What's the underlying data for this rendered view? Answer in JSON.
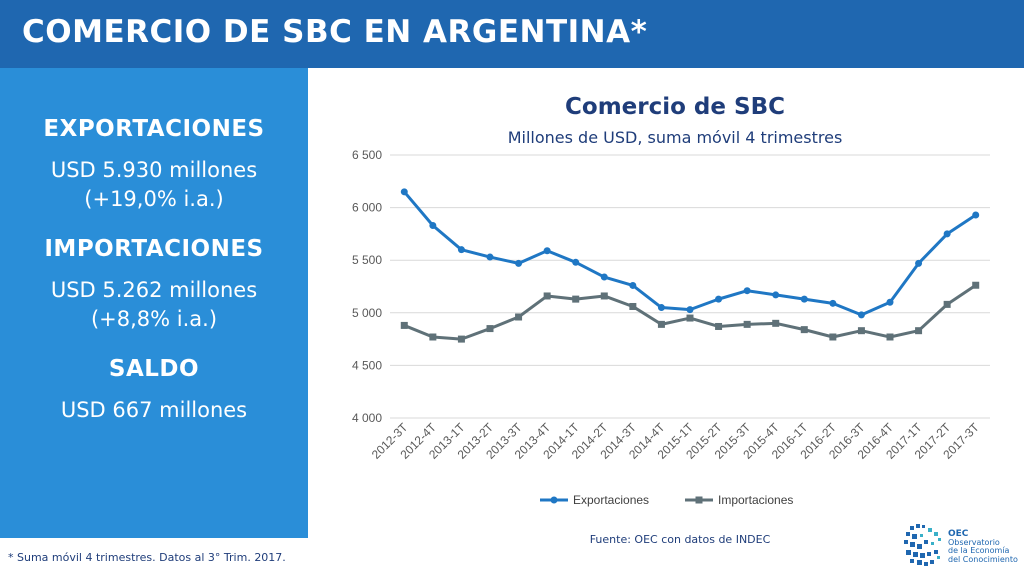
{
  "header": {
    "title": "COMERCIO DE SBC EN ARGENTINA*"
  },
  "left_panel": {
    "exports_heading": "EXPORTACIONES",
    "exports_line1": "USD 5.930 millones",
    "exports_line2": "(+19,0% i.a.)",
    "imports_heading": "IMPORTACIONES",
    "imports_line1": "USD 5.262 millones",
    "imports_line2": "(+8,8% i.a.)",
    "balance_heading": "SALDO",
    "balance_line1": "USD 667 millones",
    "footnote": "* Suma móvil 4 trimestres. Datos al 3° Trim. 2017."
  },
  "source": "Fuente: OEC con datos de INDEC",
  "logo": {
    "name": "OEC",
    "line1": "Observatorio",
    "line2": "de la Economía",
    "line3": "del Conocimiento"
  },
  "chart_data": {
    "type": "line",
    "title": "Comercio de SBC",
    "subtitle": "Millones de USD, suma móvil 4 trimestres",
    "categories": [
      "2012-3T",
      "2012-4T",
      "2013-1T",
      "2013-2T",
      "2013-3T",
      "2013-4T",
      "2014-1T",
      "2014-2T",
      "2014-3T",
      "2014-4T",
      "2015-1T",
      "2015-2T",
      "2015-3T",
      "2015-4T",
      "2016-1T",
      "2016-2T",
      "2016-3T",
      "2016-4T",
      "2017-1T",
      "2017-2T",
      "2017-3T"
    ],
    "series": [
      {
        "name": "Exportaciones",
        "color": "#1f77c4",
        "marker": "circle",
        "values": [
          6150,
          5830,
          5600,
          5530,
          5470,
          5590,
          5480,
          5340,
          5260,
          5050,
          5030,
          5130,
          5210,
          5170,
          5130,
          5090,
          4980,
          5100,
          5470,
          5750,
          5930
        ]
      },
      {
        "name": "Importaciones",
        "color": "#5f7178",
        "marker": "square",
        "values": [
          4880,
          4770,
          4750,
          4850,
          4960,
          5160,
          5130,
          5160,
          5060,
          4890,
          4950,
          4870,
          4890,
          4900,
          4840,
          4770,
          4830,
          4770,
          4830,
          5080,
          5262
        ]
      }
    ],
    "ylim": [
      4000,
      6500
    ],
    "yticks": [
      4000,
      4500,
      5000,
      5500,
      6000,
      6500
    ],
    "ytick_labels": [
      "4 000",
      "4 500",
      "5 000",
      "5 500",
      "6 000",
      "6 500"
    ],
    "grid": true,
    "legend_position": "bottom"
  }
}
